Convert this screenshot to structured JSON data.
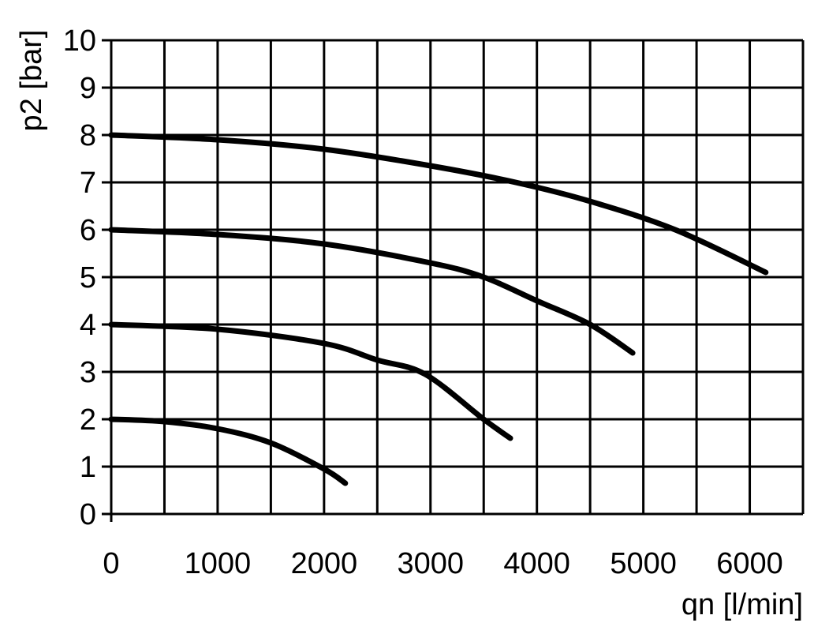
{
  "chart_data": {
    "type": "line",
    "title": "",
    "xlabel": "qn [l/min]",
    "ylabel": "p2 [bar]",
    "xlim": [
      0,
      6500
    ],
    "ylim": [
      0,
      10
    ],
    "x_ticks": [
      0,
      1000,
      2000,
      3000,
      4000,
      5000,
      6000
    ],
    "x_tick_labels": [
      "0",
      "1000",
      "2000",
      "3000",
      "4000",
      "5000",
      "6000"
    ],
    "x_grid_step": 500,
    "y_ticks": [
      0,
      1,
      2,
      3,
      4,
      5,
      6,
      7,
      8,
      9,
      10
    ],
    "y_tick_labels": [
      "0",
      "1",
      "2",
      "3",
      "4",
      "5",
      "6",
      "7",
      "8",
      "9",
      "10"
    ],
    "grid": true,
    "legend": "none",
    "colors": {
      "line": "#000000",
      "grid": "#000000",
      "background": "#ffffff"
    },
    "series": [
      {
        "x": [
          0,
          500,
          1000,
          1500,
          2000,
          2200
        ],
        "y": [
          2.0,
          1.95,
          1.8,
          1.5,
          0.95,
          0.65
        ]
      },
      {
        "x": [
          0,
          1000,
          2000,
          2500,
          2950,
          3500,
          3750
        ],
        "y": [
          4.0,
          3.9,
          3.6,
          3.25,
          2.95,
          2.0,
          1.6
        ]
      },
      {
        "x": [
          0,
          1000,
          2000,
          3000,
          3500,
          4000,
          4500,
          4900
        ],
        "y": [
          6.0,
          5.9,
          5.7,
          5.3,
          5.0,
          4.5,
          4.0,
          3.4
        ]
      },
      {
        "x": [
          0,
          1000,
          2000,
          3000,
          3800,
          4500,
          5300,
          6150
        ],
        "y": [
          8.0,
          7.9,
          7.7,
          7.35,
          7.0,
          6.6,
          6.0,
          5.1
        ]
      }
    ]
  }
}
